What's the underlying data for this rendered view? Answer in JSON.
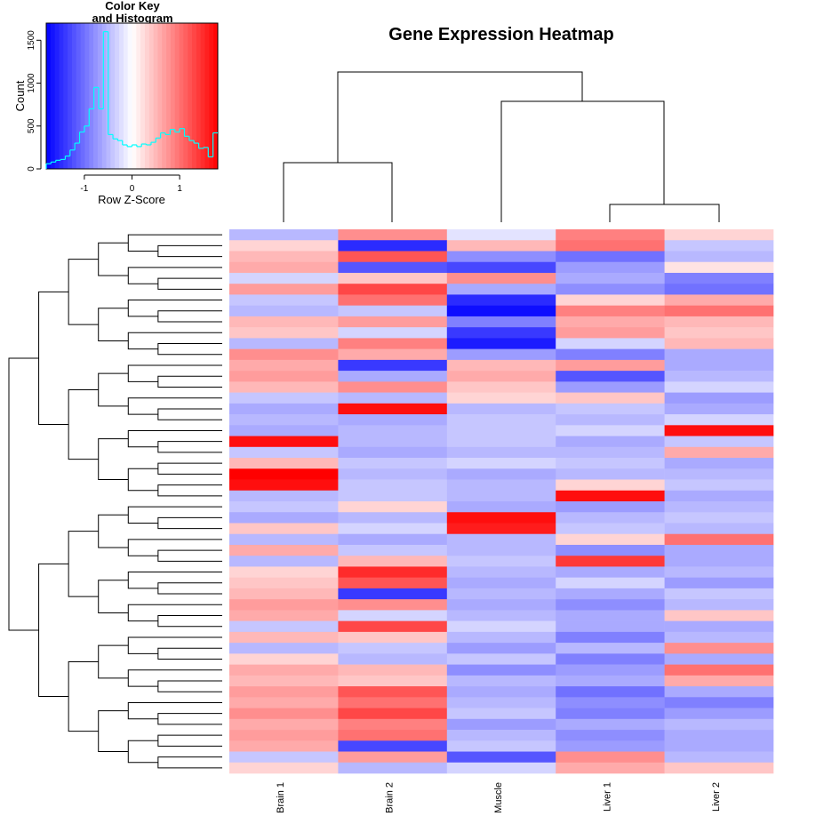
{
  "chart_data": {
    "type": "heatmap",
    "title": "Gene Expression Heatmap",
    "columns": [
      "Brain 1",
      "Brain 2",
      "Muscle",
      "Liver 1",
      "Liver 2"
    ],
    "colors": [
      "#0000ff",
      "#ffffff",
      "#ff0000"
    ],
    "values": [
      [
        -0.5,
        0.8,
        -0.2,
        0.9,
        0.3
      ],
      [
        0.3,
        -1.5,
        0.5,
        1.0,
        -0.4
      ],
      [
        0.5,
        1.2,
        -0.8,
        -1.0,
        -0.5
      ],
      [
        0.6,
        -1.2,
        -1.3,
        -0.7,
        0.2
      ],
      [
        -0.3,
        0.4,
        0.8,
        -0.6,
        -0.9
      ],
      [
        0.7,
        1.3,
        -0.6,
        -0.8,
        -1.0
      ],
      [
        -0.4,
        1.0,
        -1.5,
        0.3,
        0.6
      ],
      [
        -0.5,
        -0.4,
        -1.7,
        0.9,
        1.0
      ],
      [
        0.5,
        0.7,
        -0.9,
        0.6,
        0.5
      ],
      [
        0.4,
        -0.3,
        -1.4,
        0.7,
        0.4
      ],
      [
        -0.5,
        0.9,
        -1.6,
        -0.3,
        0.5
      ],
      [
        0.8,
        0.6,
        -0.7,
        -0.9,
        -0.6
      ],
      [
        0.6,
        -1.4,
        0.5,
        0.7,
        -0.6
      ],
      [
        0.7,
        -0.6,
        0.6,
        -1.2,
        -0.5
      ],
      [
        0.5,
        0.8,
        0.4,
        -0.7,
        -0.3
      ],
      [
        -0.4,
        -0.5,
        0.3,
        0.4,
        -0.7
      ],
      [
        -0.6,
        1.7,
        -0.5,
        -0.4,
        -0.6
      ],
      [
        -0.5,
        -0.6,
        -0.4,
        -0.5,
        -0.3
      ],
      [
        -0.6,
        -0.5,
        -0.4,
        -0.3,
        1.7
      ],
      [
        1.7,
        -0.5,
        -0.4,
        -0.6,
        -0.4
      ],
      [
        -0.4,
        -0.6,
        -0.5,
        -0.5,
        0.6
      ],
      [
        0.5,
        -0.4,
        -0.3,
        -0.4,
        -0.6
      ],
      [
        1.8,
        -0.5,
        -0.6,
        -0.5,
        -0.5
      ],
      [
        1.7,
        -0.4,
        -0.5,
        0.3,
        -0.4
      ],
      [
        -0.5,
        -0.4,
        -0.5,
        1.7,
        -0.6
      ],
      [
        -0.4,
        0.3,
        -0.6,
        -0.7,
        -0.5
      ],
      [
        -0.6,
        -0.5,
        1.7,
        -0.5,
        -0.4
      ],
      [
        0.4,
        -0.3,
        1.6,
        -0.4,
        -0.5
      ],
      [
        -0.5,
        -0.6,
        -0.5,
        0.3,
        1.0
      ],
      [
        0.6,
        -0.4,
        -0.5,
        -0.8,
        -0.6
      ],
      [
        -0.5,
        0.5,
        -0.4,
        1.4,
        -0.6
      ],
      [
        0.3,
        1.5,
        -0.5,
        -0.6,
        -0.5
      ],
      [
        0.4,
        1.2,
        -0.6,
        -0.3,
        -0.7
      ],
      [
        0.5,
        -1.4,
        -0.5,
        -0.6,
        -0.4
      ],
      [
        0.7,
        0.8,
        -0.6,
        -0.8,
        -0.5
      ],
      [
        0.6,
        -0.3,
        -0.5,
        -0.6,
        0.4
      ],
      [
        -0.4,
        1.3,
        -0.3,
        -0.6,
        -0.6
      ],
      [
        0.5,
        0.4,
        -0.5,
        -0.9,
        -0.5
      ],
      [
        -0.5,
        -0.4,
        -0.7,
        -0.5,
        0.8
      ],
      [
        0.3,
        -0.5,
        -0.4,
        -0.9,
        -0.6
      ],
      [
        0.6,
        0.5,
        -0.8,
        -0.7,
        1.0
      ],
      [
        0.5,
        0.4,
        -0.5,
        -0.6,
        0.6
      ],
      [
        0.7,
        1.2,
        -0.6,
        -1.0,
        -0.6
      ],
      [
        0.6,
        1.0,
        -0.5,
        -0.8,
        -0.9
      ],
      [
        0.8,
        1.3,
        -0.4,
        -0.9,
        -0.7
      ],
      [
        0.6,
        0.9,
        -0.7,
        -0.6,
        -0.5
      ],
      [
        0.7,
        1.0,
        -0.5,
        -0.8,
        -0.6
      ],
      [
        0.6,
        -1.3,
        -0.4,
        -0.7,
        -0.6
      ],
      [
        -0.4,
        0.7,
        -1.2,
        0.8,
        -0.5
      ],
      [
        0.3,
        -0.5,
        -0.3,
        0.6,
        0.4
      ]
    ],
    "color_key": {
      "title": [
        "Color Key",
        "and Histogram"
      ],
      "xlabel": "Row Z-Score",
      "ylabel": "Count",
      "xlim": [
        -1.8,
        1.8
      ],
      "ylim": [
        0,
        1700
      ],
      "xticks": [
        -1,
        0,
        1
      ],
      "yticks": [
        0,
        500,
        1000,
        1500
      ],
      "histogram_color": "#00ffff",
      "bins": [
        -1.8,
        -1.7,
        -1.6,
        -1.5,
        -1.4,
        -1.3,
        -1.2,
        -1.1,
        -1.0,
        -0.9,
        -0.8,
        -0.7,
        -0.6,
        -0.5,
        -0.4,
        -0.3,
        -0.2,
        -0.1,
        0,
        0.1,
        0.2,
        0.3,
        0.4,
        0.5,
        0.6,
        0.7,
        0.8,
        0.9,
        1.0,
        1.1,
        1.2,
        1.3,
        1.4,
        1.5,
        1.6,
        1.7,
        1.8
      ],
      "counts": [
        60,
        80,
        100,
        110,
        150,
        220,
        300,
        430,
        500,
        700,
        950,
        700,
        1600,
        400,
        350,
        330,
        280,
        260,
        280,
        260,
        290,
        280,
        310,
        360,
        420,
        400,
        460,
        430,
        470,
        380,
        330,
        300,
        240,
        250,
        140,
        420
      ]
    }
  }
}
